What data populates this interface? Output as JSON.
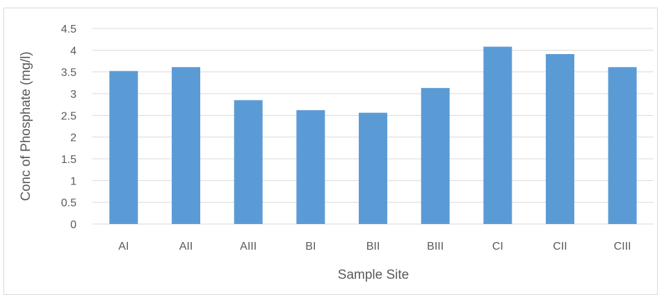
{
  "chart_data": {
    "type": "bar",
    "title": "",
    "xlabel": "Sample Site",
    "ylabel": "Conc of Phosphate (mg/l)",
    "categories": [
      "AI",
      "AII",
      "AIII",
      "BI",
      "BII",
      "BIII",
      "CI",
      "CII",
      "CIII"
    ],
    "values": [
      3.52,
      3.61,
      2.85,
      2.62,
      2.56,
      3.13,
      4.08,
      3.91,
      3.61
    ],
    "ylim": [
      0,
      4.5
    ],
    "yticks": [
      "0",
      "0.5",
      "1",
      "1.5",
      "2",
      "2.5",
      "3",
      "3.5",
      "4",
      "4.5"
    ],
    "grid": true,
    "legend": "none",
    "colors": {
      "bar": "#5b9bd5",
      "gridline": "#d9d9d9",
      "text": "#595959"
    }
  }
}
